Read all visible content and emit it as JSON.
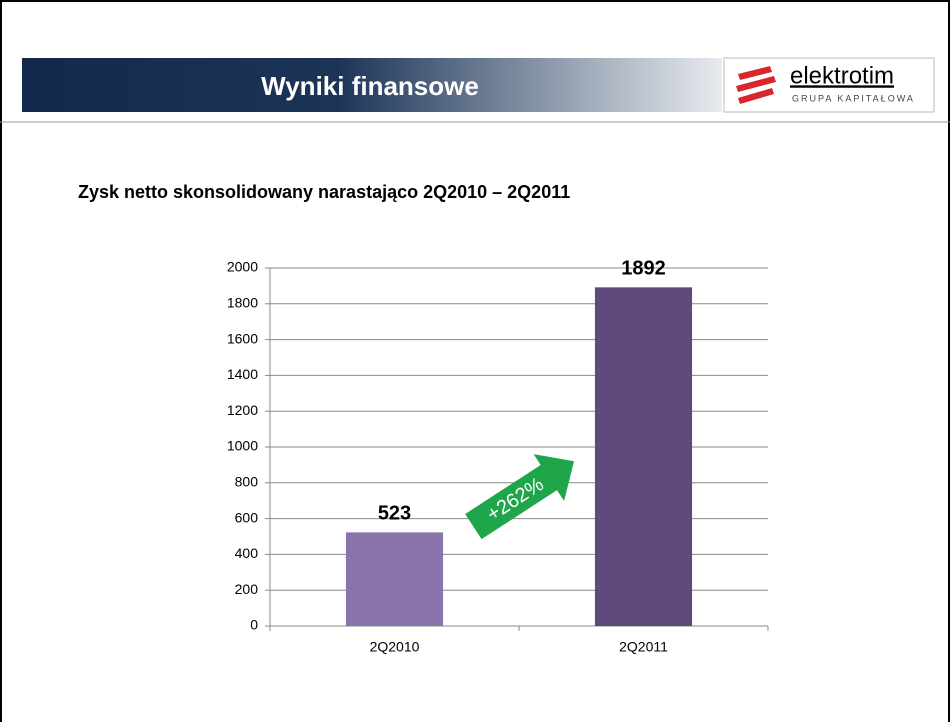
{
  "header": {
    "title": "Wyniki finansowe",
    "logo_name": "elektrotim",
    "logo_tagline": "GRUPA KAPITAŁOWA"
  },
  "chart_data": {
    "type": "bar",
    "title": "Zysk netto skonsolidowany narastająco 2Q2010 – 2Q2011",
    "categories": [
      "2Q2010",
      "2Q2011"
    ],
    "values": [
      523,
      1892
    ],
    "colors": [
      "#8a74ac",
      "#604a7b"
    ],
    "ylim": [
      0,
      2000
    ],
    "yticks": [
      0,
      200,
      400,
      600,
      800,
      1000,
      1200,
      1400,
      1600,
      1800,
      2000
    ],
    "grid": true,
    "annotation": "+262%"
  }
}
